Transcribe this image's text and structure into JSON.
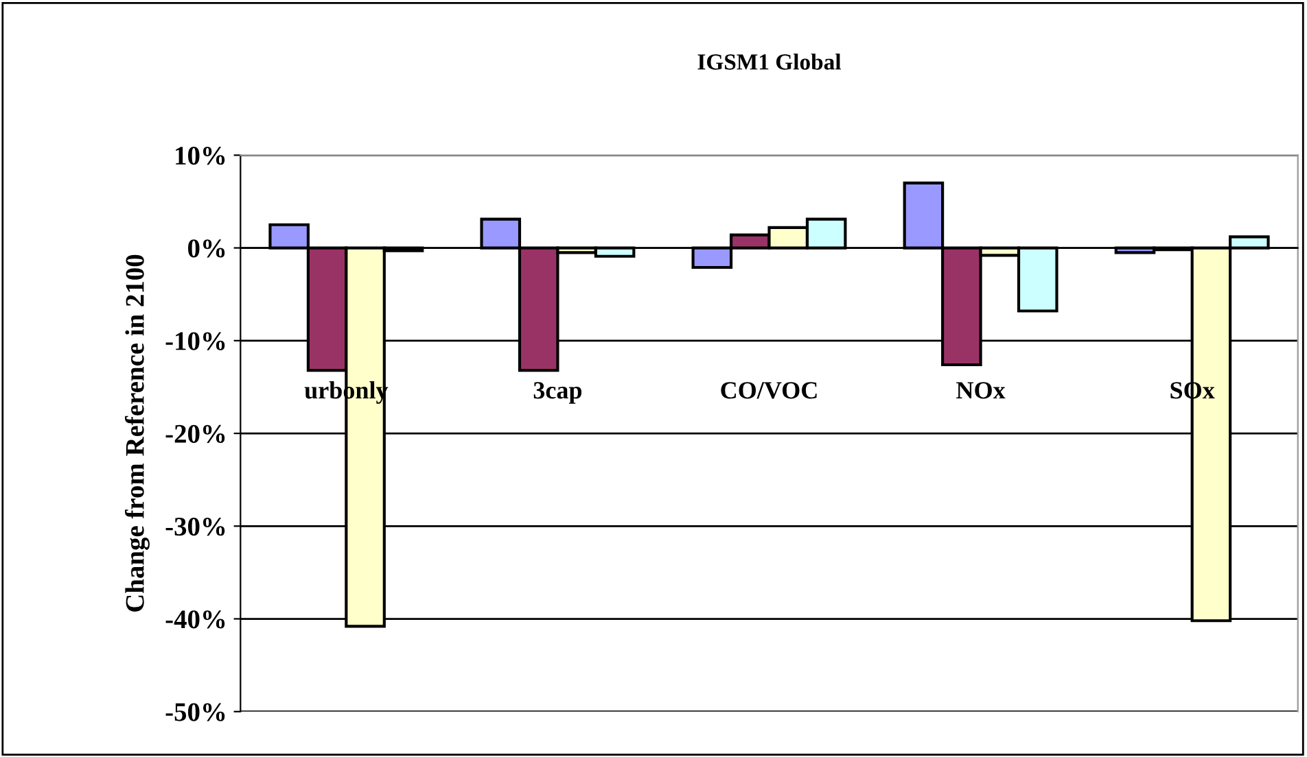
{
  "chart_data": {
    "type": "bar",
    "title": "IGSM1 Global",
    "ylabel": "Change from Reference in 2100",
    "categories": [
      "urbonly",
      "3cap",
      "CO/VOC",
      "NOx",
      "SOx"
    ],
    "series": [
      {
        "color": "#9999ff",
        "values": [
          2.5,
          3.1,
          -2.1,
          7.0,
          -0.5
        ]
      },
      {
        "color": "#993366",
        "values": [
          -13.2,
          -13.2,
          1.4,
          -12.6,
          -0.2
        ]
      },
      {
        "color": "#ffffcc",
        "values": [
          -40.8,
          -0.5,
          2.2,
          -0.8,
          -40.2
        ]
      },
      {
        "color": "#ccffff",
        "values": [
          -0.3,
          -0.9,
          3.1,
          -6.8,
          1.2
        ]
      }
    ],
    "ylim": [
      -50,
      10
    ],
    "yticks": [
      {
        "value": -50,
        "label": "-50%"
      },
      {
        "value": -40,
        "label": "-40%"
      },
      {
        "value": -30,
        "label": "-30%"
      },
      {
        "value": -20,
        "label": "-20%"
      },
      {
        "value": -10,
        "label": "-10%"
      },
      {
        "value": 0,
        "label": "0%"
      },
      {
        "value": 10,
        "label": "10%"
      }
    ],
    "grid": "y"
  }
}
